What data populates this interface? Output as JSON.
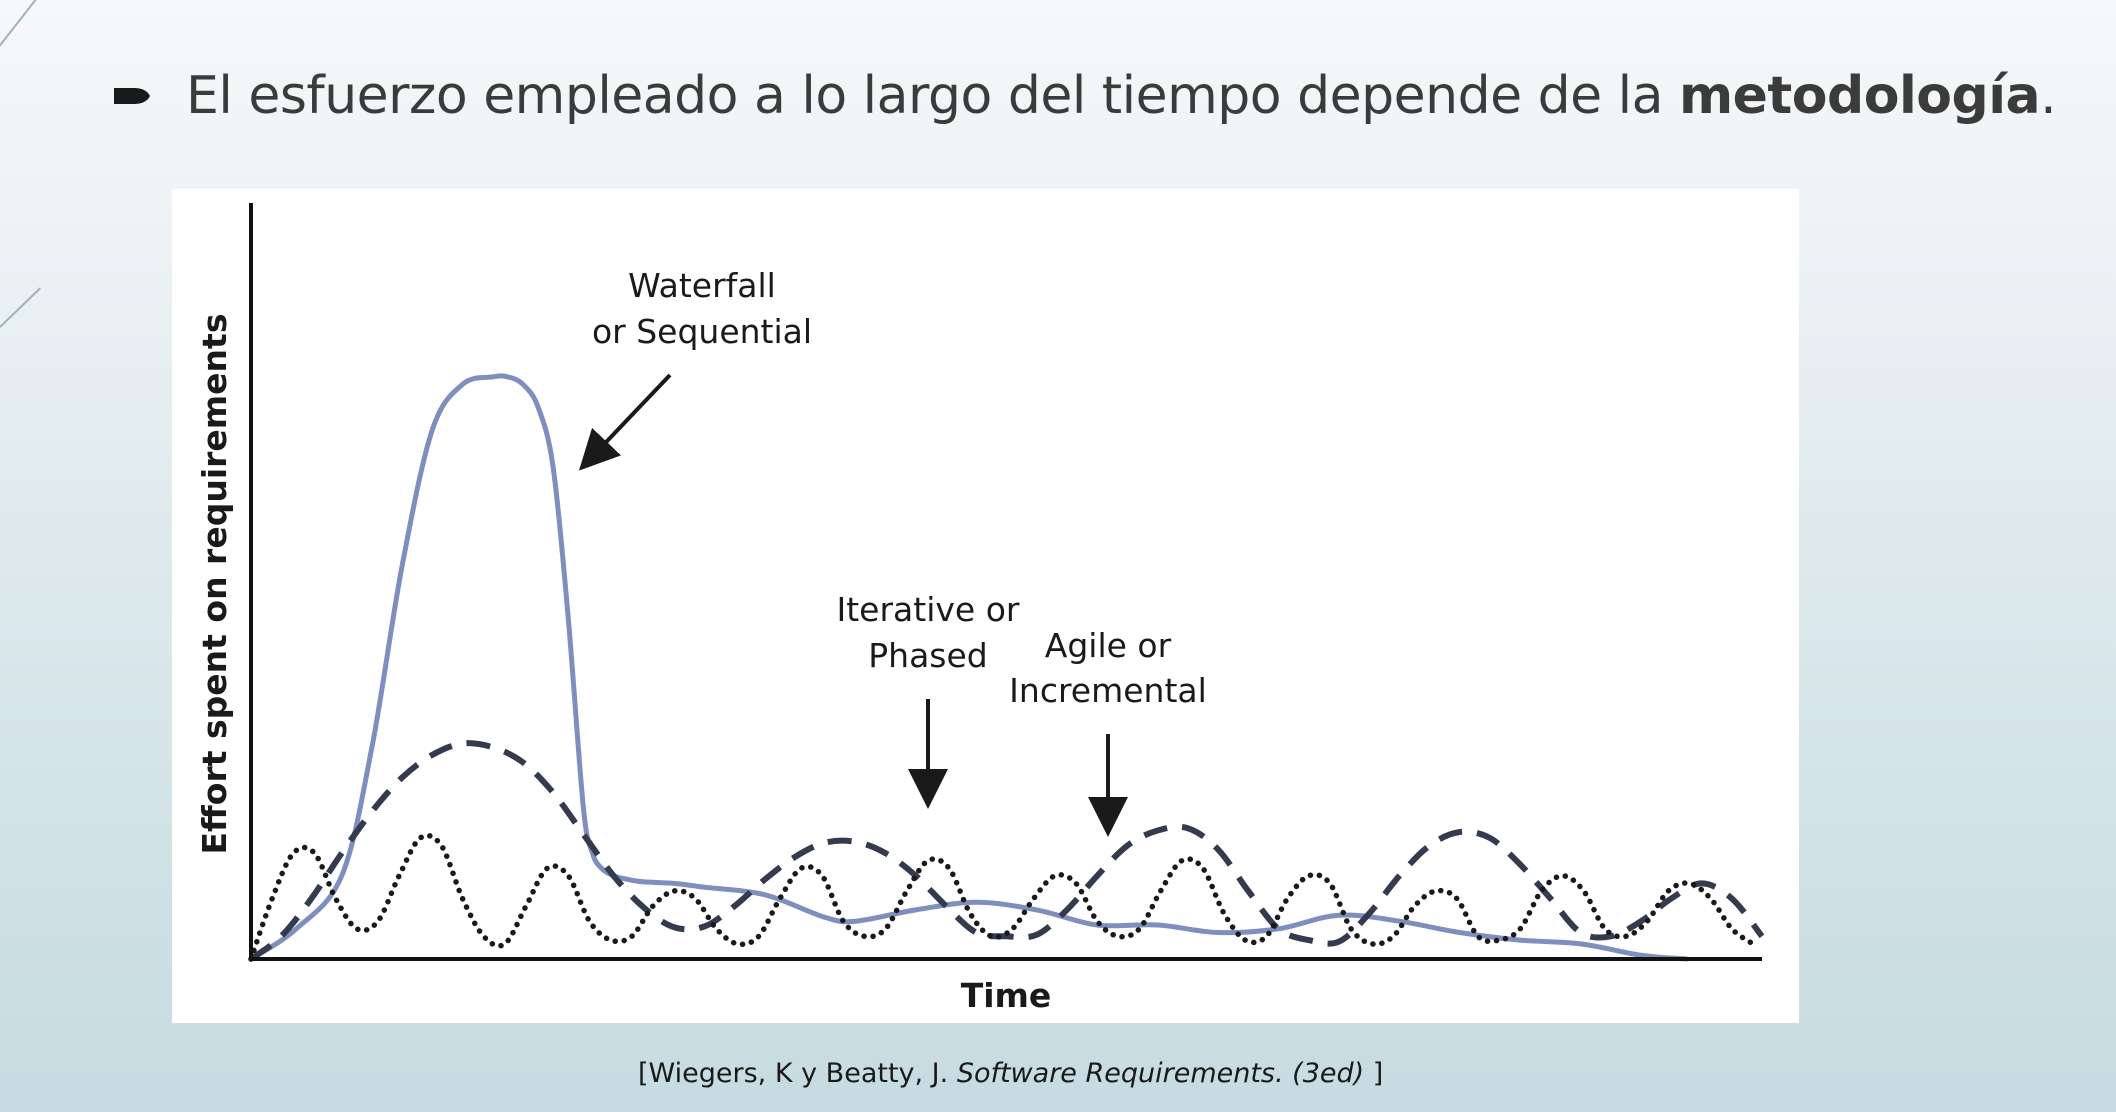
{
  "slide": {
    "bullet_text": "El esfuerzo empleado a lo largo del tiempo depende de la ",
    "bullet_bold": "metodología",
    "bullet_end": ".",
    "caption_prefix": "[Wiegers, K y Beatty, J. ",
    "caption_italic": "Software Requirements. (3ed)",
    "caption_suffix": " ]"
  },
  "chart_data": {
    "type": "line",
    "title": "",
    "xlabel": "Time",
    "ylabel": "Effort spent on requirements",
    "xlim": [
      0,
      100
    ],
    "ylim": [
      0,
      100
    ],
    "grid": false,
    "legend": "none",
    "series": [
      {
        "name": "Waterfall or Sequential",
        "style": "solid",
        "color": "#7f8fbd",
        "x": [
          0,
          3,
          6,
          8,
          10,
          12,
          14,
          16,
          17,
          18,
          19,
          20,
          21,
          22,
          22.6,
          23.2,
          24,
          25,
          26,
          28,
          30,
          34,
          38,
          40,
          44,
          48,
          52,
          56,
          60,
          64,
          68,
          72,
          76,
          80,
          84,
          88,
          92,
          95
        ],
        "y": [
          0,
          4,
          11,
          28,
          52,
          70,
          76,
          77,
          77,
          76,
          73,
          65,
          45,
          20,
          14,
          12,
          11,
          10.5,
          10.2,
          10,
          9.5,
          8.5,
          5.5,
          5,
          6.5,
          7.5,
          6.5,
          4.5,
          4.5,
          3.5,
          4,
          5.8,
          5,
          3.5,
          2.5,
          2,
          0.5,
          0
        ]
      },
      {
        "name": "Iterative or Phased",
        "style": "dashed",
        "color": "#343b4f",
        "x": [
          0,
          2,
          4,
          6,
          8,
          10,
          12,
          14,
          16,
          18,
          20,
          22,
          24,
          26,
          28,
          30,
          32,
          34,
          36,
          38,
          40,
          42,
          44,
          46,
          48,
          50,
          52,
          54,
          56,
          58,
          60,
          62,
          64,
          66,
          68,
          70,
          72,
          74,
          76,
          78,
          80,
          82,
          84,
          86,
          88,
          90,
          92,
          94,
          96,
          98,
          100
        ],
        "y": [
          0,
          3,
          8,
          14,
          19.5,
          24,
          27,
          28.5,
          28,
          26,
          22,
          16.5,
          11,
          6.8,
          4.2,
          4.3,
          7,
          10.5,
          13.5,
          15.4,
          15.5,
          14,
          11,
          7,
          3.5,
          3,
          3.2,
          6.5,
          11,
          15,
          17,
          17.3,
          14.5,
          9,
          4,
          2.5,
          2.3,
          6,
          11,
          15,
          16.8,
          16,
          12.5,
          8,
          3.5,
          3,
          5,
          8,
          10,
          8,
          3
        ]
      },
      {
        "name": "Agile or Incremental",
        "style": "dotted",
        "color": "#1a1a1a",
        "x": [
          0,
          1.4,
          2.8,
          4.2,
          5.6,
          7.0,
          8.4,
          9.8,
          11.2,
          12.6,
          14.0,
          15.4,
          16.8,
          18.2,
          19.6,
          21.0,
          22.4,
          23.8,
          25.2,
          26.6,
          28.0,
          29.4,
          30.8,
          32.2,
          33.6,
          35.0,
          36.4,
          37.8,
          39.2,
          40.6,
          42.0,
          43.4,
          44.8,
          46.2,
          47.6,
          49.0,
          50.4,
          51.8,
          53.2,
          54.6,
          56.0,
          57.4,
          58.8,
          60.2,
          61.6,
          63.0,
          64.4,
          65.8,
          67.2,
          68.6,
          70.0,
          71.4,
          72.8,
          74.2,
          75.6,
          77.0,
          78.4,
          79.8,
          81.2,
          82.6,
          84.0,
          85.4,
          86.8,
          88.2,
          89.6,
          91.0,
          92.4,
          93.8,
          95.2,
          96.6,
          98.0,
          99.4
        ],
        "y": [
          0,
          8,
          14,
          14,
          8,
          4,
          5,
          11,
          16,
          15,
          8,
          3,
          2,
          7,
          12,
          11,
          5,
          2.5,
          3,
          7,
          9,
          8,
          4,
          2,
          3,
          8,
          12,
          11,
          5,
          3,
          4,
          9,
          13,
          12,
          6,
          3,
          4,
          8,
          11,
          10,
          5,
          3,
          4,
          9,
          13,
          12,
          6,
          2.5,
          3,
          8,
          11,
          10,
          4,
          2,
          3,
          7,
          9,
          8,
          3,
          2.5,
          4,
          9,
          11,
          9,
          4,
          3,
          5,
          9,
          10,
          8,
          4,
          2
        ]
      }
    ],
    "annotations": [
      {
        "line1": "Waterfall",
        "line2": "or Sequential"
      },
      {
        "line1": "Iterative or",
        "line2": "Phased"
      },
      {
        "line1": "Agile or",
        "line2": "Incremental"
      }
    ]
  }
}
